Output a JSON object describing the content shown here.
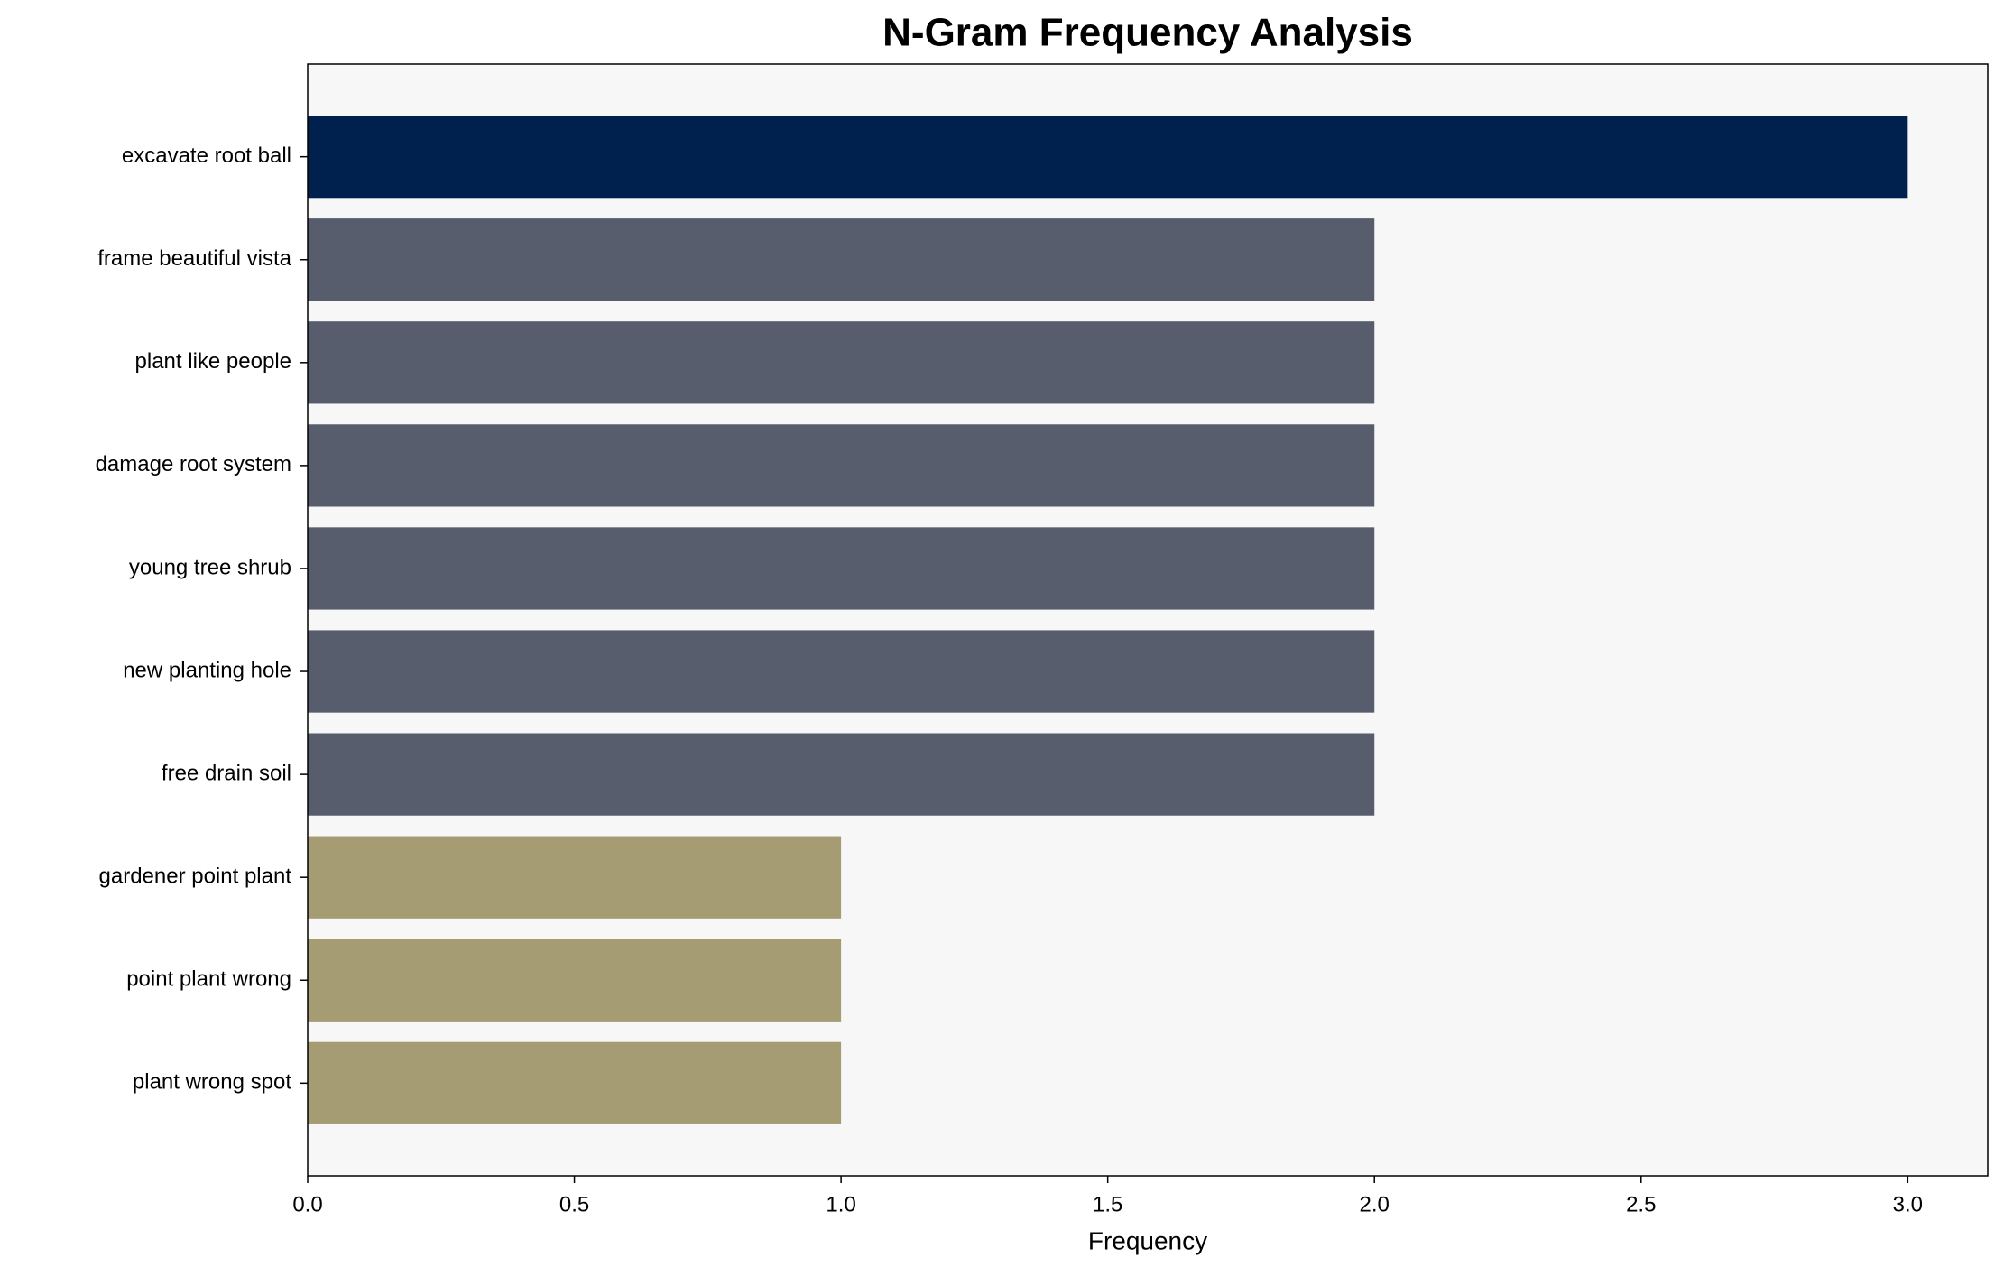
{
  "chart_data": {
    "type": "barh",
    "title": "N-Gram Frequency Analysis",
    "xlabel": "Frequency",
    "categories": [
      "excavate root ball",
      "frame beautiful vista",
      "plant like people",
      "damage root system",
      "young tree shrub",
      "new planting hole",
      "free drain soil",
      "gardener point plant",
      "point plant wrong",
      "plant wrong spot"
    ],
    "values": [
      3,
      2,
      2,
      2,
      2,
      2,
      2,
      1,
      1,
      1
    ],
    "colors": [
      "#00204e",
      "#575d6d",
      "#575d6d",
      "#575d6d",
      "#575d6d",
      "#575d6d",
      "#575d6d",
      "#a59c74",
      "#a59c74",
      "#a59c74"
    ],
    "xlim": [
      0,
      3.15
    ],
    "xticks": [
      {
        "value": 0,
        "label": "0.0"
      },
      {
        "value": 0.5,
        "label": "0.5"
      },
      {
        "value": 1,
        "label": "1.0"
      },
      {
        "value": 1.5,
        "label": "1.5"
      },
      {
        "value": 2,
        "label": "2.0"
      },
      {
        "value": 2.5,
        "label": "2.5"
      },
      {
        "value": 3,
        "label": "3.0"
      }
    ],
    "grid": false
  }
}
